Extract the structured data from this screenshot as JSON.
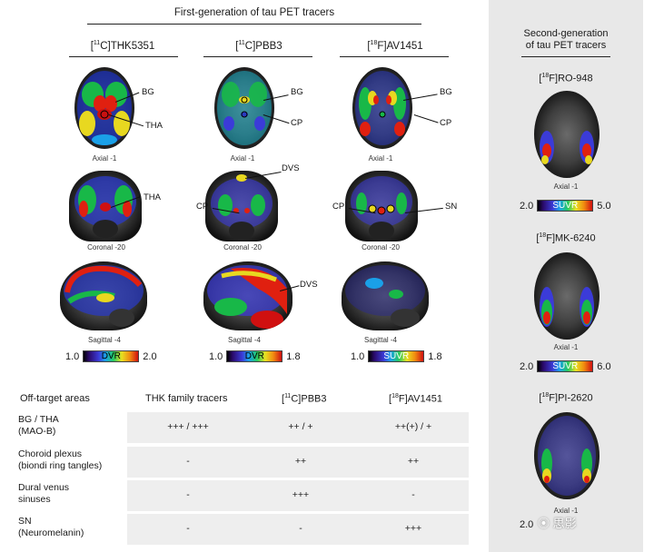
{
  "first_gen": {
    "title": "First-generation of tau PET tracers",
    "tracers": [
      {
        "isotope": "11",
        "element": "C",
        "name": "THK5351"
      },
      {
        "isotope": "11",
        "element": "C",
        "name": "PBB3"
      },
      {
        "isotope": "18",
        "element": "F",
        "name": "AV1451"
      }
    ],
    "views": {
      "axial": "Axial -1",
      "coronal": "Coronal -20",
      "sagittal": "Sagittal -4"
    },
    "annotations": {
      "thk_axial_bg": "BG",
      "thk_axial_tha": "THA",
      "thk_coronal_tha": "THA",
      "pbb_axial_bg": "BG",
      "pbb_axial_cp": "CP",
      "pbb_coronal_dvs": "DVS",
      "pbb_coronal_cp": "CP",
      "pbb_sagittal_dvs": "DVS",
      "av_axial_bg": "BG",
      "av_axial_cp": "CP",
      "av_coronal_cp": "CP",
      "av_coronal_sn": "SN"
    },
    "scales": [
      {
        "min": "1.0",
        "label": "DVR",
        "max": "2.0"
      },
      {
        "min": "1.0",
        "label": "DVR",
        "max": "1.8"
      },
      {
        "min": "1.0",
        "label": "SUVR",
        "max": "1.8"
      }
    ]
  },
  "second_gen": {
    "title_line1": "Second-generation",
    "title_line2": "of tau PET tracers",
    "tracers": [
      {
        "isotope": "18",
        "element": "F",
        "name": "RO-948",
        "view": "Axial -1",
        "min": "2.0",
        "label": "SUVR",
        "max": "5.0"
      },
      {
        "isotope": "18",
        "element": "F",
        "name": "MK-6240",
        "view": "Axial -1",
        "min": "2.0",
        "label": "SUVR",
        "max": "6.0"
      },
      {
        "isotope": "18",
        "element": "F",
        "name": "PI-2620",
        "view": "Axial -1",
        "min": "2.0",
        "label": "",
        "max": ""
      }
    ],
    "watermark": "⦿ 思影"
  },
  "table": {
    "header": {
      "col0": "Off-target areas",
      "col1": "THK family tracers",
      "col2_iso": "11",
      "col2_el": "C",
      "col2_name": "PBB3",
      "col3_iso": "18",
      "col3_el": "F",
      "col3_name": "AV1451"
    },
    "rows": [
      {
        "label1": "BG / THA",
        "label2": "(MAO-B)",
        "thk": "+++ / +++",
        "pbb": "++ / +",
        "av": "++(+) / +"
      },
      {
        "label1": "Choroid plexus",
        "label2": "(biondi ring tangles)",
        "thk": "-",
        "pbb": "++",
        "av": "++"
      },
      {
        "label1": "Dural venus",
        "label2": "sinuses",
        "thk": "-",
        "pbb": "+++",
        "av": "-"
      },
      {
        "label1": "SN",
        "label2": "(Neuromelanin)",
        "thk": "-",
        "pbb": "-",
        "av": "+++"
      }
    ]
  }
}
